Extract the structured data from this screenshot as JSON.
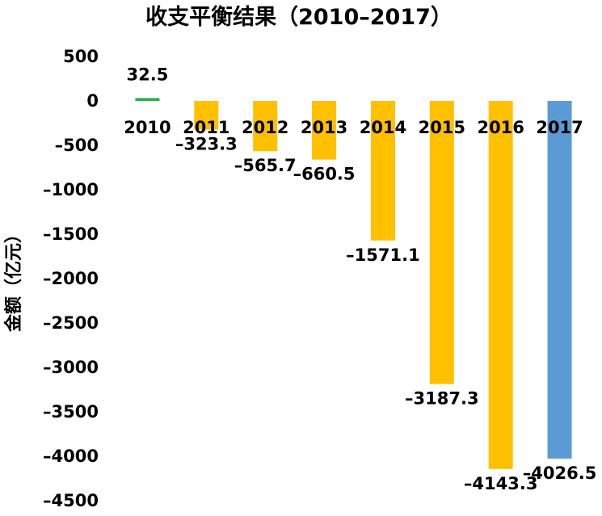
{
  "chart_data": {
    "type": "bar",
    "title": "收支平衡结果（2010–2017）",
    "xlabel": "",
    "ylabel": "金额（亿元）",
    "ylim": [
      -4500,
      500
    ],
    "yticks": [
      "500",
      "0",
      "–500",
      "–1000",
      "–1500",
      "–2000",
      "–2500",
      "–3000",
      "–3500",
      "–4000",
      "–4500"
    ],
    "ytick_values": [
      500,
      0,
      -500,
      -1000,
      -1500,
      -2000,
      -2500,
      -3000,
      -3500,
      -4000,
      -4500
    ],
    "grid": false,
    "categories": [
      "2010",
      "2011",
      "2012",
      "2013",
      "2014",
      "2015",
      "2016",
      "2017"
    ],
    "values": [
      32.5,
      -323.3,
      -565.7,
      -660.5,
      -1571.1,
      -3187.3,
      -4143.3,
      -4026.5
    ],
    "data_labels": [
      "32.5",
      "–323.3",
      "–565.7",
      "–660.5",
      "–1571.1",
      "–3187.3",
      "–4143.3",
      "–4026.5"
    ],
    "colors": [
      "#22b14c",
      "#ffc000",
      "#ffc000",
      "#ffc000",
      "#ffc000",
      "#ffc000",
      "#ffc000",
      "#5b9bd5"
    ]
  }
}
